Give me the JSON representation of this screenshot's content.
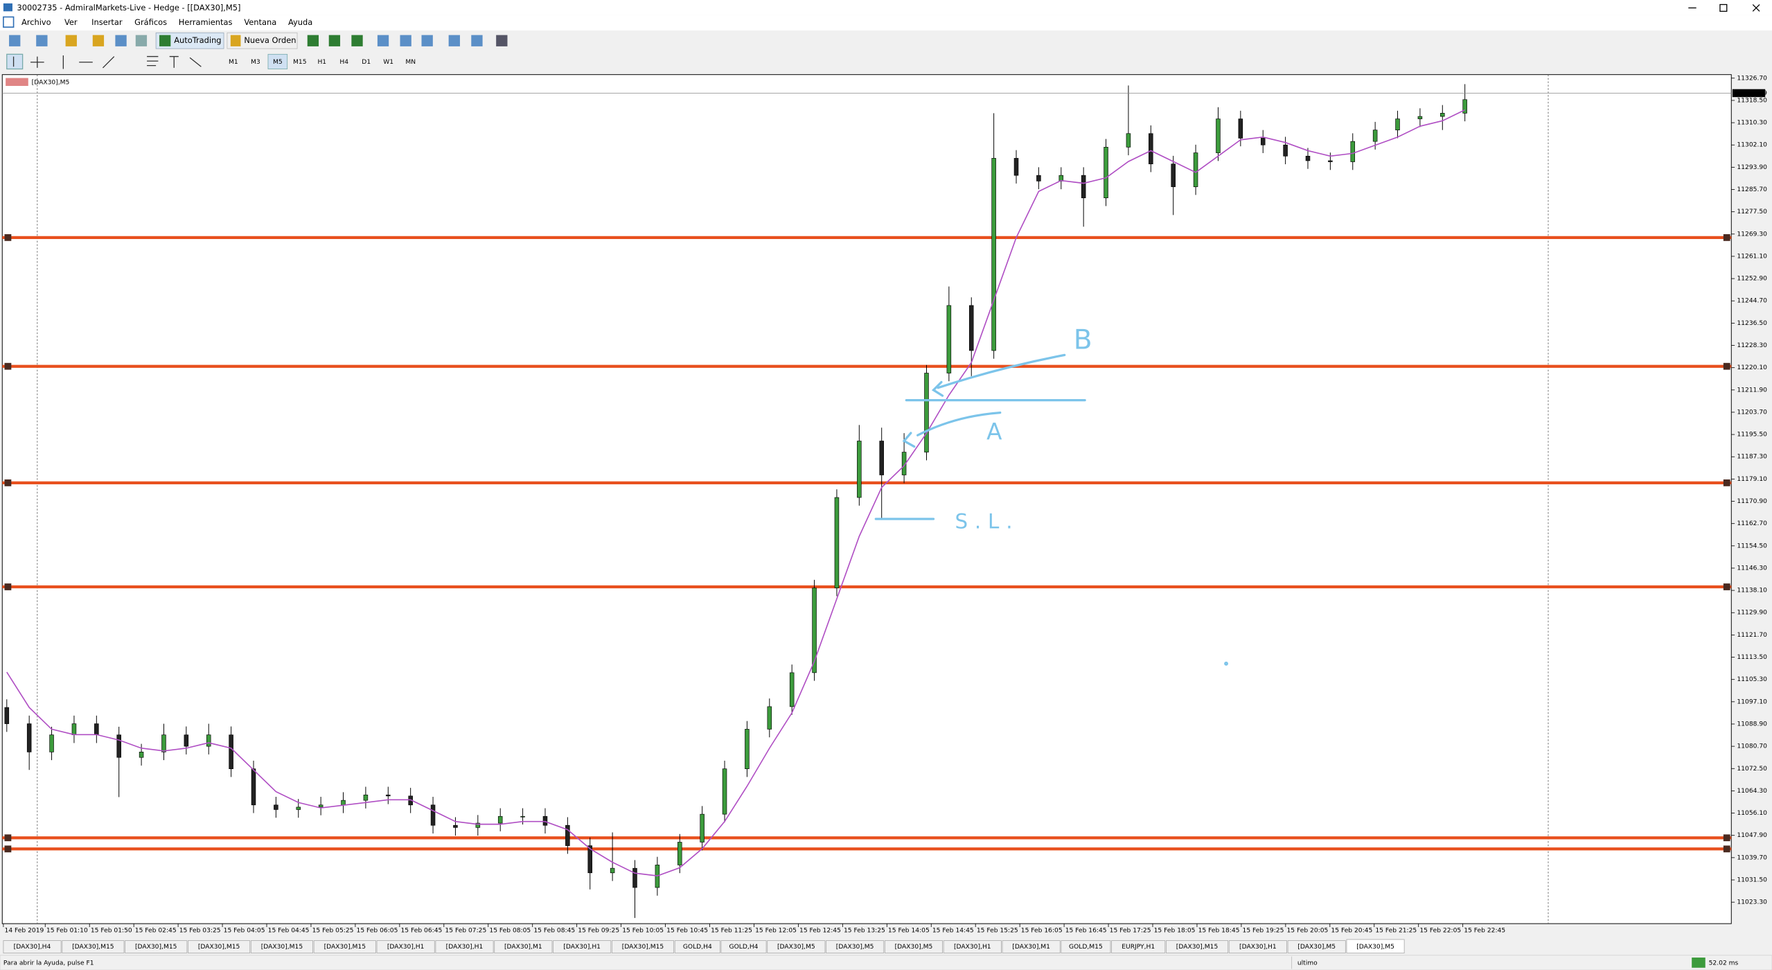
{
  "window": {
    "title": "30002735 - AdmiralMarkets-Live - Hedge - [[DAX30],M5]",
    "menu": [
      "Archivo",
      "Ver",
      "Insertar",
      "Gráficos",
      "Herramientas",
      "Ventana",
      "Ayuda"
    ],
    "toolbar": {
      "autotrading": "AutoTrading",
      "new_order": "Nueva Orden",
      "timeframes": [
        "M1",
        "M3",
        "M5",
        "M15",
        "H1",
        "H4",
        "D1",
        "W1",
        "MN"
      ],
      "active_timeframe": "M5"
    },
    "tabs": [
      "[DAX30],H4",
      "[DAX30],M15",
      "[DAX30],M15",
      "[DAX30],M15",
      "[DAX30],M15",
      "[DAX30],M15",
      "[DAX30],H1",
      "[DAX30],H1",
      "[DAX30],M1",
      "[DAX30],H1",
      "[DAX30],M15",
      "GOLD,H4",
      "GOLD,H4",
      "[DAX30],M5",
      "[DAX30],M5",
      "[DAX30],M5",
      "[DAX30],H1",
      "[DAX30],M1",
      "GOLD,M15",
      "EURJPY,H1",
      "[DAX30],M15",
      "[DAX30],H1",
      "[DAX30],M5",
      "[DAX30],M5"
    ],
    "active_tab": 23,
    "status": {
      "help": "Para abrir la Ayuda, pulse F1",
      "profile": "ultimo",
      "ping": "52.02 ms"
    }
  },
  "chart_data": {
    "type": "candlestick",
    "title": "[DAX30],M5",
    "open": [
      11095.0,
      11089.0,
      11078.6,
      11084.9,
      11089.0,
      11084.9,
      11076.6,
      11078.6,
      11084.9,
      11080.7,
      11084.9,
      11072.4,
      11059.1,
      11057.4,
      11058.3,
      11059.1,
      11060.8,
      11062.8,
      11062.4,
      11059.1,
      11051.6,
      11050.8,
      11052.4,
      11054.9,
      11054.9,
      11051.6,
      11044.1,
      11034.1,
      11035.8,
      11028.7,
      11037.0,
      11045.4,
      11055.7,
      11072.4,
      11087.0,
      11095.3,
      11107.8,
      11139.0,
      11172.3,
      11193.1,
      11180.6,
      11189.0,
      11218.1,
      11243.0,
      11226.4,
      11297.2,
      11290.9,
      11288.8,
      11290.9,
      11282.6,
      11301.3,
      11306.3,
      11295.1,
      11286.7,
      11299.2,
      11311.7,
      11304.6,
      11302.1,
      11298.0,
      11296.3,
      11295.9,
      11303.4,
      11307.6,
      11311.7,
      11312.6,
      11313.8
    ],
    "high": [
      11098.0,
      11092.0,
      11087.9,
      11092.0,
      11092.0,
      11087.9,
      11081.6,
      11089.0,
      11088.0,
      11089.0,
      11088.0,
      11075.4,
      11062.1,
      11061.3,
      11062.1,
      11063.8,
      11065.8,
      11065.8,
      11065.4,
      11062.1,
      11054.6,
      11055.4,
      11057.9,
      11057.9,
      11057.9,
      11054.6,
      11047.1,
      11049.0,
      11038.8,
      11040.0,
      11048.4,
      11058.7,
      11075.4,
      11090.0,
      11098.3,
      11110.8,
      11142.0,
      11175.3,
      11199.0,
      11198.0,
      11196.0,
      11221.1,
      11250.0,
      11246.0,
      11313.8,
      11300.2,
      11293.9,
      11293.9,
      11293.9,
      11304.3,
      11324.0,
      11309.3,
      11298.1,
      11302.2,
      11316.0,
      11314.7,
      11307.6,
      11305.1,
      11301.0,
      11299.3,
      11306.4,
      11310.6,
      11314.7,
      11315.6,
      11316.8,
      11324.5
    ],
    "low": [
      11086.0,
      11072.0,
      11075.6,
      11081.9,
      11081.9,
      11062.0,
      11073.6,
      11075.6,
      11077.7,
      11077.7,
      11069.4,
      11056.1,
      11054.4,
      11054.4,
      11055.3,
      11056.1,
      11057.8,
      11059.4,
      11056.1,
      11048.6,
      11047.8,
      11047.8,
      11049.4,
      11051.9,
      11048.6,
      11041.1,
      11028.0,
      11031.1,
      11017.5,
      11025.7,
      11034.0,
      11042.4,
      11052.7,
      11069.4,
      11084.0,
      11092.3,
      11104.8,
      11136.0,
      11169.3,
      11164.8,
      11177.6,
      11186.0,
      11215.1,
      11217.0,
      11223.4,
      11287.9,
      11285.8,
      11285.8,
      11272.0,
      11279.6,
      11298.3,
      11292.1,
      11276.3,
      11283.7,
      11296.2,
      11301.6,
      11299.1,
      11295.0,
      11293.3,
      11292.9,
      11292.9,
      11300.4,
      11304.6,
      11308.7,
      11307.6,
      11310.8
    ],
    "close": [
      11089.0,
      11078.6,
      11084.9,
      11089.0,
      11084.9,
      11076.6,
      11078.6,
      11084.9,
      11080.7,
      11084.9,
      11072.4,
      11059.1,
      11057.4,
      11058.3,
      11059.1,
      11060.8,
      11062.8,
      11062.4,
      11059.1,
      11051.6,
      11050.8,
      11052.4,
      11054.9,
      11054.9,
      11051.6,
      11044.1,
      11034.1,
      11035.8,
      11028.7,
      11037.0,
      11045.4,
      11055.7,
      11072.4,
      11087.0,
      11095.3,
      11107.8,
      11139.0,
      11172.3,
      11193.1,
      11180.6,
      11189.0,
      11218.1,
      11243.0,
      11226.4,
      11297.2,
      11290.9,
      11288.8,
      11290.9,
      11282.6,
      11301.3,
      11306.3,
      11295.1,
      11286.7,
      11299.2,
      11311.7,
      11304.6,
      11302.1,
      11298.0,
      11296.3,
      11295.9,
      11303.4,
      11307.6,
      11311.7,
      11312.6,
      11313.8,
      11318.8
    ],
    "bull_color": "#3c9b3c",
    "bear_color": "#222222",
    "ma": {
      "color": "#b04fc4",
      "values": [
        11108,
        11095,
        11087,
        11085,
        11085,
        11083,
        11080,
        11079,
        11080,
        11082,
        11080,
        11072,
        11064,
        11060,
        11058,
        11059,
        11060,
        11061,
        11061,
        11057,
        11053,
        11052,
        11052,
        11053,
        11053,
        11050,
        11043,
        11038,
        11034,
        11033,
        11036,
        11043,
        11053,
        11066,
        11080,
        11093,
        11112,
        11135,
        11158,
        11176,
        11184,
        11196,
        11210,
        11222,
        11245,
        11268,
        11285,
        11289,
        11288,
        11290,
        11296,
        11300,
        11296,
        11292,
        11298,
        11304,
        11305,
        11303,
        11300,
        11298,
        11299,
        11302,
        11305,
        11309,
        11311,
        11315
      ]
    },
    "levels": [
      11268.0,
      11220.6,
      11177.7,
      11139.4,
      11047.0,
      11042.9
    ],
    "level_color": "#e8501e",
    "current_price": 11321.19,
    "x_labels": [
      "14 Feb 2019",
      "15 Feb 01:10",
      "15 Feb 01:50",
      "15 Feb 02:45",
      "15 Feb 03:25",
      "15 Feb 04:05",
      "15 Feb 04:45",
      "15 Feb 05:25",
      "15 Feb 06:05",
      "15 Feb 06:45",
      "15 Feb 07:25",
      "15 Feb 08:05",
      "15 Feb 08:45",
      "15 Feb 09:25",
      "15 Feb 10:05",
      "15 Feb 10:45",
      "15 Feb 11:25",
      "15 Feb 12:05",
      "15 Feb 12:45",
      "15 Feb 13:25",
      "15 Feb 14:05",
      "15 Feb 14:45",
      "15 Feb 15:25",
      "15 Feb 16:05",
      "15 Feb 16:45",
      "15 Feb 17:25",
      "15 Feb 18:05",
      "15 Feb 18:45",
      "15 Feb 19:25",
      "15 Feb 20:05",
      "15 Feb 20:45",
      "15 Feb 21:25",
      "15 Feb 22:05",
      "15 Feb 22:45"
    ],
    "ylim": [
      11015.4,
      11328.0
    ],
    "yticks": [
      {
        "value": 11326.7,
        "label": "11326.70"
      },
      {
        "value": 11318.5,
        "label": "11318.50"
      },
      {
        "value": 11310.3,
        "label": "11310.30"
      },
      {
        "value": 11302.1,
        "label": "11302.10"
      },
      {
        "value": 11293.9,
        "label": "11293.90"
      },
      {
        "value": 11285.7,
        "label": "11285.70"
      },
      {
        "value": 11277.5,
        "label": "11277.50"
      },
      {
        "value": 11269.3,
        "label": "11269.30"
      },
      {
        "value": 11261.1,
        "label": "11261.10"
      },
      {
        "value": 11252.9,
        "label": "11252.90"
      },
      {
        "value": 11244.7,
        "label": "11244.70"
      },
      {
        "value": 11236.5,
        "label": "11236.50"
      },
      {
        "value": 11228.3,
        "label": "11228.30"
      },
      {
        "value": 11220.1,
        "label": "11220.10"
      },
      {
        "value": 11211.9,
        "label": "11211.90"
      },
      {
        "value": 11203.7,
        "label": "11203.70"
      },
      {
        "value": 11195.5,
        "label": "11195.50"
      },
      {
        "value": 11187.3,
        "label": "11187.30"
      },
      {
        "value": 11179.1,
        "label": "11179.10"
      },
      {
        "value": 11170.9,
        "label": "11170.90"
      },
      {
        "value": 11162.7,
        "label": "11162.70"
      },
      {
        "value": 11154.5,
        "label": "11154.50"
      },
      {
        "value": 11146.3,
        "label": "11146.30"
      },
      {
        "value": 11138.1,
        "label": "11138.10"
      },
      {
        "value": 11129.9,
        "label": "11129.90"
      },
      {
        "value": 11121.7,
        "label": "11121.70"
      },
      {
        "value": 11113.5,
        "label": "11113.50"
      },
      {
        "value": 11105.3,
        "label": "11105.30"
      },
      {
        "value": 11097.1,
        "label": "11097.10"
      },
      {
        "value": 11088.9,
        "label": "11088.90"
      },
      {
        "value": 11080.7,
        "label": "11080.70"
      },
      {
        "value": 11072.5,
        "label": "11072.50"
      },
      {
        "value": 11064.3,
        "label": "11064.30"
      },
      {
        "value": 11056.1,
        "label": "11056.10"
      },
      {
        "value": 11047.9,
        "label": "11047.90"
      },
      {
        "value": 11039.7,
        "label": "11039.70"
      },
      {
        "value": 11031.5,
        "label": "11031.50"
      },
      {
        "value": 11023.3,
        "label": "11023.30"
      }
    ],
    "annotations": [
      "B",
      "A",
      "S.L."
    ]
  }
}
